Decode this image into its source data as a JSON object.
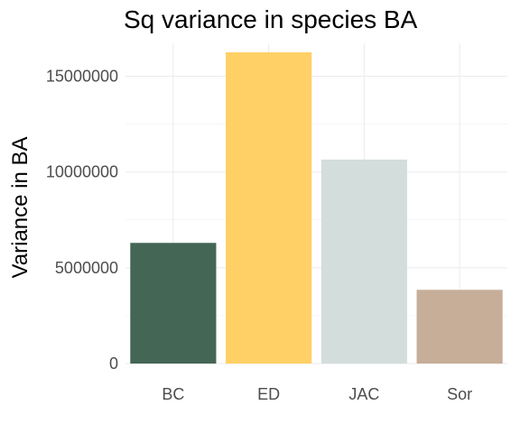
{
  "chart_data": {
    "type": "bar",
    "title": "Sq variance in species BA",
    "xlabel": "",
    "ylabel": "Variance in BA",
    "categories": [
      "BC",
      "ED",
      "JAC",
      "Sor"
    ],
    "values": [
      6300000,
      16250000,
      10650000,
      3850000
    ],
    "colors": [
      "#446655",
      "#FFD065",
      "#D3DDDC",
      "#C6AE99"
    ],
    "ylim": [
      0,
      16250000
    ],
    "yticks": [
      0,
      5000000,
      10000000,
      15000000
    ],
    "ytick_labels": [
      "0",
      "5000000",
      "10000000",
      "15000000"
    ],
    "grid": true,
    "legend": "none"
  }
}
